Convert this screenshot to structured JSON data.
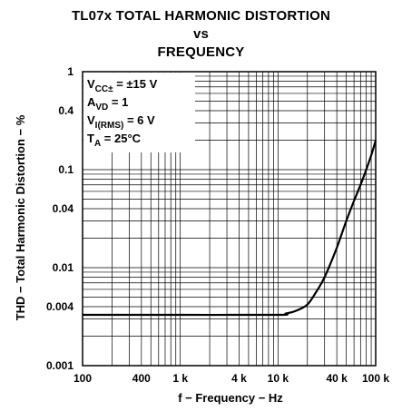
{
  "header": {
    "title_line1": "TL07x TOTAL HARMONIC DISTORTION",
    "title_line2": "vs",
    "title_line3": "FREQUENCY"
  },
  "annotations": {
    "vcc": {
      "main": "V",
      "sub": "CC±",
      "rest": " = ±15 V"
    },
    "avd": {
      "main": "A",
      "sub": "VD",
      "rest": " = 1"
    },
    "vi": {
      "main": "V",
      "sub": "I(RMS)",
      "rest": " = 6 V"
    },
    "ta": {
      "main": "T",
      "sub": "A",
      "rest": " =  25°C"
    }
  },
  "chart_data": {
    "type": "line",
    "xscale": "log",
    "yscale": "log",
    "xlabel": "f − Frequency − Hz",
    "ylabel": "THD − Total Harmonic Distortion − %",
    "xlim": [
      100,
      100000
    ],
    "ylim": [
      0.001,
      1
    ],
    "grid": true,
    "x_ticks": [
      {
        "value": 100,
        "label": "100"
      },
      {
        "value": 400,
        "label": "400"
      },
      {
        "value": 1000,
        "label": "1 k"
      },
      {
        "value": 4000,
        "label": "4 k"
      },
      {
        "value": 10000,
        "label": "10 k"
      },
      {
        "value": 40000,
        "label": "40 k"
      },
      {
        "value": 100000,
        "label": "100 k"
      }
    ],
    "y_ticks": [
      {
        "value": 1,
        "label": "1"
      },
      {
        "value": 0.4,
        "label": "0.4"
      },
      {
        "value": 0.1,
        "label": "0.1"
      },
      {
        "value": 0.04,
        "label": "0.04"
      },
      {
        "value": 0.01,
        "label": "0.01"
      },
      {
        "value": 0.004,
        "label": "0.004"
      },
      {
        "value": 0.001,
        "label": "0.001"
      }
    ],
    "series": [
      {
        "x": [
          100,
          1000,
          10000,
          12000,
          15000,
          20000,
          25000,
          30000,
          40000,
          50000,
          60000,
          70000,
          80000,
          90000,
          100000
        ],
        "y": [
          0.0033,
          0.0033,
          0.0033,
          0.0034,
          0.0036,
          0.0042,
          0.0058,
          0.008,
          0.016,
          0.03,
          0.048,
          0.07,
          0.1,
          0.14,
          0.2
        ]
      }
    ]
  }
}
